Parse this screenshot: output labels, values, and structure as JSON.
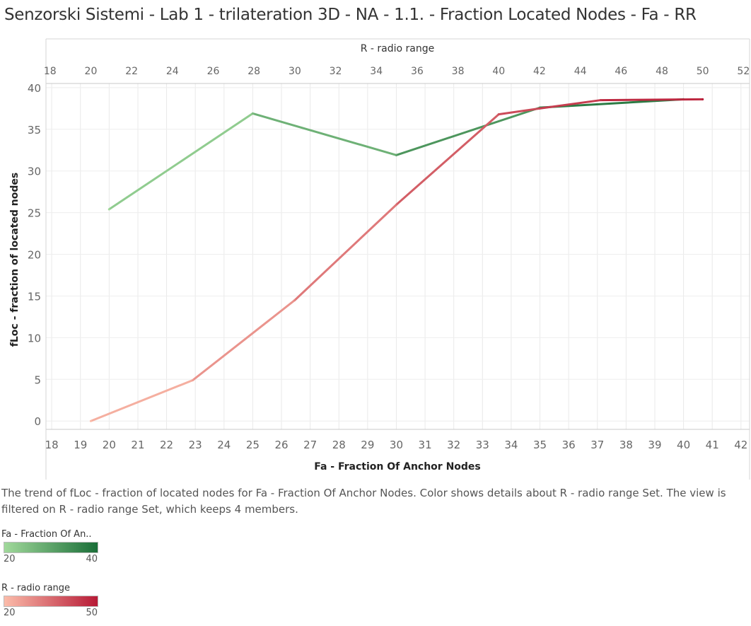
{
  "title": "Senzorski Sistemi - Lab 1 - trilateration 3D - NA - 1.1. - Fraction Located Nodes - Fa - RR",
  "description": "The trend of fLoc - fraction of located nodes for Fa - Fraction Of Anchor Nodes.  Color shows details about R - radio range Set. The view is filtered on R - radio range Set, which keeps 4 members.",
  "legends": [
    {
      "title": "Fa - Fraction Of An..",
      "min": "20",
      "max": "40",
      "color_start": "#a1d99b",
      "color_end": "#1a6e38"
    },
    {
      "title": "R - radio range",
      "min": "20",
      "max": "50",
      "color_start": "#fbbcaa",
      "color_end": "#b71a36"
    }
  ],
  "chart_data": {
    "type": "line",
    "title": "Senzorski Sistemi - Lab 1 - trilateration 3D - NA - 1.1. - Fraction Located Nodes - Fa - RR",
    "xlabel": "Fa - Fraction Of Anchor Nodes",
    "ylabel": "fLoc - fraction of located nodes",
    "x2label": "R - radio range",
    "xlim": [
      17.8,
      42.3
    ],
    "ylim": [
      -1,
      40.5
    ],
    "x2lim": [
      17.8,
      52.3
    ],
    "xticks": [
      18,
      19,
      20,
      21,
      22,
      23,
      24,
      25,
      26,
      27,
      28,
      29,
      30,
      31,
      32,
      33,
      34,
      35,
      36,
      37,
      38,
      39,
      40,
      41,
      42
    ],
    "yticks": [
      0,
      5,
      10,
      15,
      20,
      25,
      30,
      35,
      40
    ],
    "x2ticks": [
      18,
      20,
      22,
      24,
      26,
      28,
      30,
      32,
      34,
      36,
      38,
      40,
      42,
      44,
      46,
      48,
      50,
      52
    ],
    "grid": true,
    "series": [
      {
        "name": "Fa - Fraction Of Anchor Nodes",
        "axis": "bottom",
        "color_start": "#a1d99b",
        "color_end": "#1a6e38",
        "points": [
          {
            "x": 20,
            "y": 25.4
          },
          {
            "x": 25,
            "y": 36.9
          },
          {
            "x": 30,
            "y": 31.9
          },
          {
            "x": 35,
            "y": 37.6
          },
          {
            "x": 40,
            "y": 38.6
          }
        ]
      },
      {
        "name": "R - radio range",
        "axis": "top",
        "color_start": "#fbbcaa",
        "color_end": "#b71a36",
        "points": [
          {
            "x": 20,
            "y": 0
          },
          {
            "x": 25,
            "y": 4.9
          },
          {
            "x": 30,
            "y": 14.5
          },
          {
            "x": 35,
            "y": 26
          },
          {
            "x": 40,
            "y": 36.8
          },
          {
            "x": 42,
            "y": 37.5
          },
          {
            "x": 45,
            "y": 38.5
          },
          {
            "x": 50,
            "y": 38.6
          }
        ]
      }
    ]
  }
}
